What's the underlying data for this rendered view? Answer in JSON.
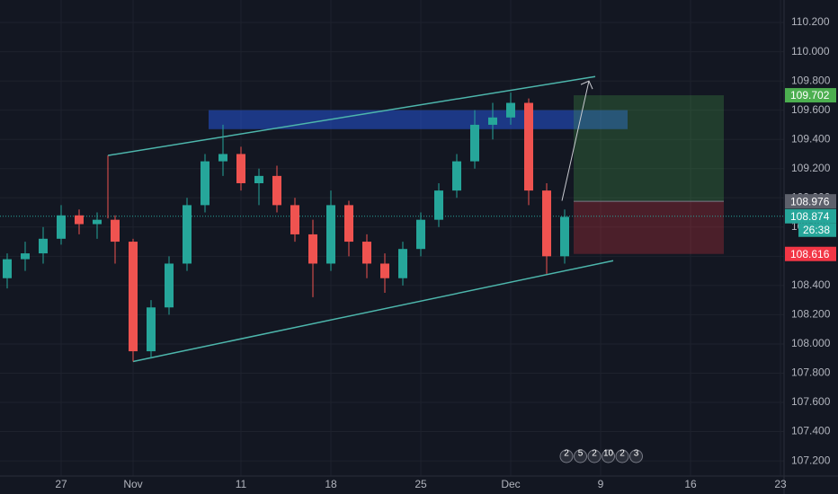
{
  "chart_data": {
    "type": "candlestick",
    "categories": [
      null,
      null,
      null,
      "27",
      null,
      null,
      null,
      "Nov",
      null,
      null,
      null,
      null,
      null,
      "11",
      null,
      null,
      null,
      null,
      "18",
      null,
      null,
      null,
      null,
      "25",
      null,
      null,
      null,
      null,
      "Dec",
      null,
      null,
      null,
      null,
      "9",
      null,
      null,
      null,
      null,
      "16",
      null,
      null,
      null,
      null,
      "23"
    ],
    "open": [
      108.45,
      108.58,
      108.62,
      108.72,
      108.88,
      108.82,
      108.85,
      108.7,
      107.95,
      108.25,
      108.55,
      108.95,
      109.25,
      109.3,
      109.1,
      109.15,
      108.95,
      108.75,
      108.55,
      108.95,
      108.7,
      108.55,
      108.45,
      108.65,
      108.85,
      109.05,
      109.25,
      109.5,
      109.55,
      109.65,
      109.05,
      108.6,
      null,
      null,
      null,
      null,
      null,
      null,
      null,
      null,
      null,
      null,
      null,
      null
    ],
    "high": [
      108.62,
      108.7,
      108.8,
      108.95,
      108.92,
      108.9,
      108.88,
      108.72,
      108.3,
      108.6,
      109.0,
      109.3,
      109.5,
      109.35,
      109.2,
      109.22,
      109.0,
      108.85,
      109.05,
      108.98,
      108.75,
      108.62,
      108.7,
      108.9,
      109.1,
      109.3,
      109.6,
      109.65,
      109.72,
      109.68,
      109.1,
      108.92,
      null,
      null,
      null,
      null,
      null,
      null,
      null,
      null,
      null,
      null,
      null,
      null
    ],
    "low": [
      108.38,
      108.5,
      108.55,
      108.68,
      108.75,
      108.72,
      108.55,
      107.88,
      107.9,
      108.2,
      108.5,
      108.9,
      109.15,
      109.05,
      108.95,
      108.9,
      108.7,
      108.32,
      108.5,
      108.6,
      108.45,
      108.35,
      108.4,
      108.6,
      108.8,
      109.0,
      109.2,
      109.4,
      109.5,
      108.95,
      108.48,
      108.55,
      null,
      null,
      null,
      null,
      null,
      null,
      null,
      null,
      null,
      null,
      null,
      null
    ],
    "close": [
      108.58,
      108.62,
      108.72,
      108.88,
      108.82,
      108.85,
      108.7,
      107.95,
      108.25,
      108.55,
      108.95,
      109.25,
      109.3,
      109.1,
      109.15,
      108.95,
      108.75,
      108.55,
      108.95,
      108.7,
      108.55,
      108.45,
      108.65,
      108.85,
      109.05,
      109.25,
      109.5,
      109.55,
      109.65,
      109.05,
      108.6,
      108.87,
      null,
      null,
      null,
      null,
      null,
      null,
      null,
      null,
      null,
      null,
      null,
      null
    ],
    "up_color": "#26a69a",
    "down_color": "#ef5350",
    "ylim": [
      107.096,
      110.354
    ],
    "yticks": [
      {
        "value": 107.2,
        "label": "107.200"
      },
      {
        "value": 107.4,
        "label": "107.400"
      },
      {
        "value": 107.6,
        "label": "107.600"
      },
      {
        "value": 107.8,
        "label": "107.800"
      },
      {
        "value": 108.0,
        "label": "108.000"
      },
      {
        "value": 108.2,
        "label": "108.200"
      },
      {
        "value": 108.4,
        "label": "108.400"
      },
      {
        "value": 108.6,
        "label": "108.600"
      },
      {
        "value": 108.8,
        "label": "108.800"
      },
      {
        "value": 109.0,
        "label": "109.000"
      },
      {
        "value": 109.2,
        "label": "109.200"
      },
      {
        "value": 109.4,
        "label": "109.400"
      },
      {
        "value": 109.6,
        "label": "109.600"
      },
      {
        "value": 109.8,
        "label": "109.800"
      },
      {
        "value": 110.0,
        "label": "110.000"
      },
      {
        "value": 110.2,
        "label": "110.200"
      }
    ],
    "grid": true,
    "levels": {
      "target": 109.702,
      "entry": 108.976,
      "last": 108.874,
      "stop": 108.616
    },
    "countdown": "26:38",
    "zone": [
      109.47,
      109.6
    ],
    "upper_channel": [
      109.29,
      109.83
    ],
    "lower_channel": [
      107.88,
      108.57
    ],
    "arrow": [
      108.98,
      109.8
    ],
    "events": [
      "2",
      "5",
      "2",
      "10",
      "2",
      "3"
    ]
  }
}
